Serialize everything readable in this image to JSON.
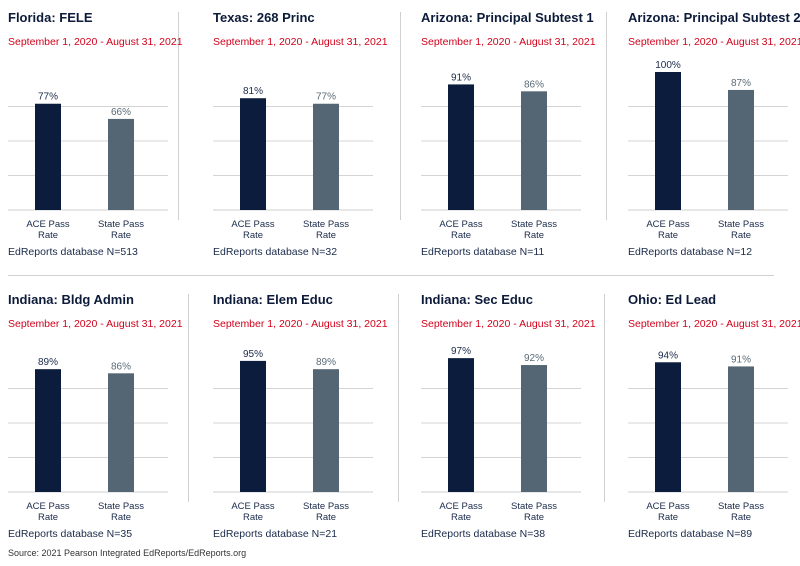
{
  "colors": {
    "ace": "#0b1c3d",
    "state": "#546673",
    "accent": "#d0021b",
    "grid": "#d4d4d4"
  },
  "source": "Source: 2021 Pearson Integrated EdReports/EdReports.org",
  "chart_data": [
    {
      "type": "bar",
      "title": "Florida: FELE",
      "subtitle": "September 1, 2020 - August 31, 2021",
      "categories": [
        "ACE Pass Rate",
        "State Pass Rate"
      ],
      "values": [
        77,
        66
      ],
      "value_labels": [
        "77%",
        "66%"
      ],
      "ylim": [
        0,
        100
      ],
      "grid": true,
      "note": "EdReports database N=513"
    },
    {
      "type": "bar",
      "title": "Texas: 268 Princ",
      "subtitle": "September 1, 2020 - August 31, 2021",
      "categories": [
        "ACE Pass Rate",
        "State Pass Rate"
      ],
      "values": [
        81,
        77
      ],
      "value_labels": [
        "81%",
        "77%"
      ],
      "ylim": [
        0,
        100
      ],
      "grid": true,
      "note": "EdReports database N=32"
    },
    {
      "type": "bar",
      "title": "Arizona: Principal Subtest 1",
      "subtitle": "September 1, 2020 - August 31, 2021",
      "categories": [
        "ACE Pass Rate",
        "State Pass Rate"
      ],
      "values": [
        91,
        86
      ],
      "value_labels": [
        "91%",
        "86%"
      ],
      "ylim": [
        0,
        100
      ],
      "grid": true,
      "note": "EdReports database N=11"
    },
    {
      "type": "bar",
      "title": "Arizona: Principal Subtest 2",
      "subtitle": "September 1, 2020 - August 31, 2021",
      "categories": [
        "ACE Pass Rate",
        "State Pass Rate"
      ],
      "values": [
        100,
        87
      ],
      "value_labels": [
        "100%",
        "87%"
      ],
      "ylim": [
        0,
        100
      ],
      "grid": true,
      "note": "EdReports database N=12"
    },
    {
      "type": "bar",
      "title": "Indiana: Bldg Admin",
      "subtitle": "September 1, 2020 - August 31, 2021",
      "categories": [
        "ACE Pass Rate",
        "State Pass Rate"
      ],
      "values": [
        89,
        86
      ],
      "value_labels": [
        "89%",
        "86%"
      ],
      "ylim": [
        0,
        100
      ],
      "grid": true,
      "note": "EdReports database N=35"
    },
    {
      "type": "bar",
      "title": "Indiana: Elem Educ",
      "subtitle": "September 1, 2020 - August 31, 2021",
      "categories": [
        "ACE Pass Rate",
        "State Pass Rate"
      ],
      "values": [
        95,
        89
      ],
      "value_labels": [
        "95%",
        "89%"
      ],
      "ylim": [
        0,
        100
      ],
      "grid": true,
      "note": "EdReports database N=21"
    },
    {
      "type": "bar",
      "title": "Indiana: Sec Educ",
      "subtitle": "September 1, 2020 - August 31, 2021",
      "categories": [
        "ACE Pass Rate",
        "State Pass Rate"
      ],
      "values": [
        97,
        92
      ],
      "value_labels": [
        "97%",
        "92%"
      ],
      "ylim": [
        0,
        100
      ],
      "grid": true,
      "note": "EdReports database N=38"
    },
    {
      "type": "bar",
      "title": "Ohio: Ed Lead",
      "subtitle": "September 1, 2020 - August 31, 2021",
      "categories": [
        "ACE Pass Rate",
        "State Pass Rate"
      ],
      "values": [
        94,
        91
      ],
      "value_labels": [
        "94%",
        "91%"
      ],
      "ylim": [
        0,
        100
      ],
      "grid": true,
      "note": "EdReports database N=89"
    }
  ]
}
